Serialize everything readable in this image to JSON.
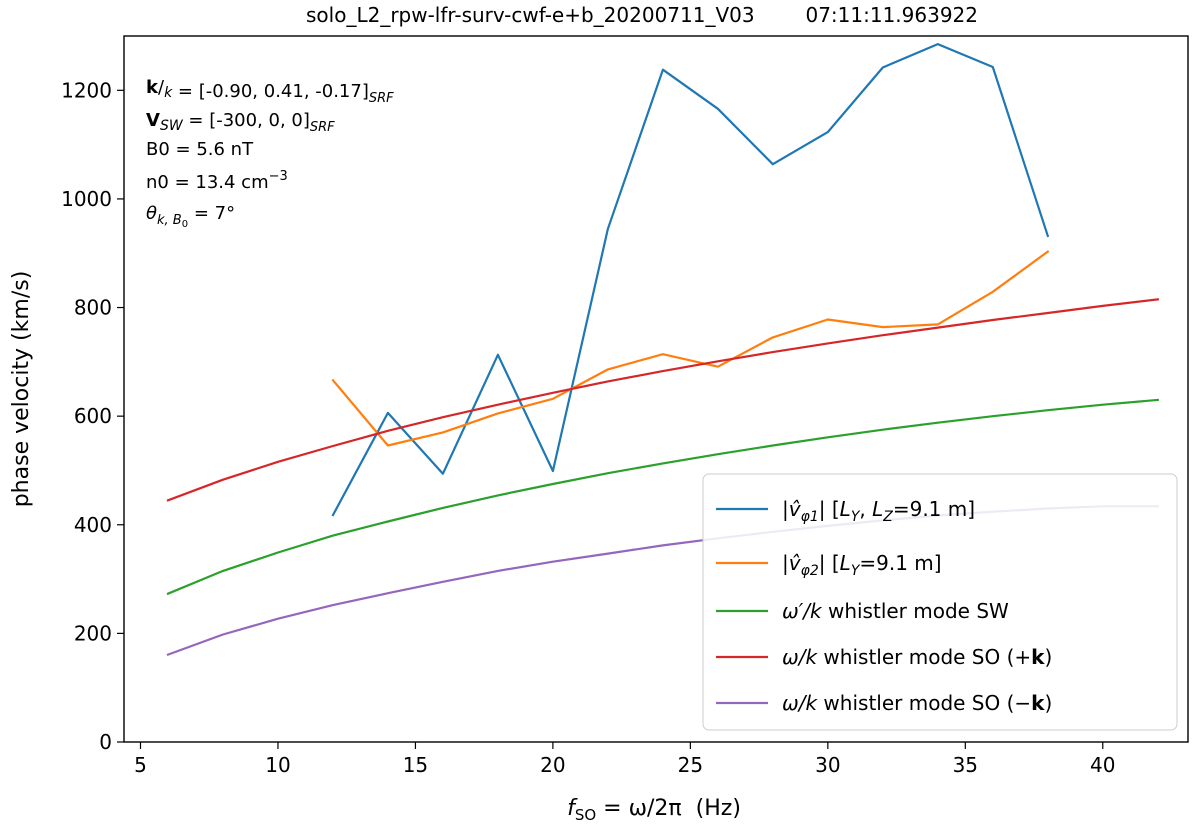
{
  "chart_data": {
    "type": "line",
    "title": "solo_L2_rpw-lfr-surv-cwf-e+b_20200711_V03        07:11:11.963922",
    "xlabel": {
      "main": "f",
      "sub": "SO",
      "rest": " = ω/2π  (Hz)"
    },
    "ylabel": "phase velocity (km/s)",
    "xlim": [
      4.4,
      43.1
    ],
    "ylim": [
      0,
      1300
    ],
    "xticks": [
      5,
      10,
      15,
      20,
      25,
      30,
      35,
      40
    ],
    "yticks": [
      0,
      200,
      400,
      600,
      800,
      1000,
      1200
    ],
    "grid": false,
    "legend_position": "lower-right",
    "annotations": [
      {
        "bold": "k",
        "mid": "/",
        "ital": "k",
        "rest": " = [-0.90, 0.41, -0.17]",
        "sub": "SRF"
      },
      {
        "bold": "V",
        "ital": "SW",
        "rest": " = [-300, 0, 0]",
        "sub": "SRF"
      },
      {
        "text": "B0 = 5.6 nT"
      },
      {
        "text": "n0 = 13.4 cm",
        "sup": "−3"
      },
      {
        "ital": "θ",
        "sub": "k, B",
        "sub2": "0",
        "rest": " = 7°"
      }
    ],
    "series": [
      {
        "name": "|v̂φ1|   [LY, LZ=9.1 m]",
        "legend": {
          "a": "|",
          "v": "v̂",
          "sub": "φ1",
          "b": "|   [",
          "c": "L",
          "csub": "Y",
          "d": ", ",
          "e": "L",
          "esub": "Z",
          "f": "=9.1 m]"
        },
        "color": "#1f77b4",
        "x": [
          12,
          14,
          16,
          18,
          20,
          22,
          24,
          26,
          28,
          30,
          32,
          34,
          36,
          38
        ],
        "y": [
          418,
          606,
          494,
          713,
          499,
          945,
          1238,
          1166,
          1064,
          1123,
          1242,
          1285,
          1243,
          932
        ]
      },
      {
        "name": "|v̂φ2|   [LY=9.1 m]",
        "legend": {
          "a": "|",
          "v": "v̂",
          "sub": "φ2",
          "b": "|   [",
          "c": "L",
          "csub": "Y",
          "f": "=9.1 m]"
        },
        "color": "#ff7f0e",
        "x": [
          12,
          14,
          16,
          18,
          20,
          22,
          24,
          26,
          28,
          30,
          32,
          34,
          36,
          38
        ],
        "y": [
          666,
          546,
          570,
          605,
          632,
          686,
          714,
          691,
          745,
          778,
          764,
          769,
          829,
          903
        ]
      },
      {
        "name": "ω′/k whistler mode SW",
        "legend": {
          "ital": "ω′/k",
          "rest": " whistler mode SW"
        },
        "color": "#2ca02c",
        "x": [
          6,
          8,
          10,
          12,
          14,
          16,
          18,
          20,
          22,
          24,
          26,
          28,
          30,
          32,
          34,
          36,
          38,
          40,
          42
        ],
        "y": [
          273,
          315,
          349,
          380,
          406,
          431,
          454,
          475,
          495,
          513,
          530,
          546,
          561,
          575,
          588,
          600,
          611,
          621,
          630
        ]
      },
      {
        "name": "ω/k whistler mode SO (+k)",
        "legend": {
          "ital": "ω/k",
          "rest": " whistler mode SO (+",
          "bold": "k",
          "end": ")"
        },
        "color": "#d62728",
        "x": [
          6,
          8,
          10,
          12,
          14,
          16,
          18,
          20,
          22,
          24,
          26,
          28,
          30,
          32,
          34,
          36,
          38,
          40,
          42
        ],
        "y": [
          445,
          483,
          516,
          545,
          573,
          598,
          621,
          643,
          664,
          683,
          701,
          718,
          734,
          749,
          763,
          777,
          790,
          803,
          815
        ]
      },
      {
        "name": "ω/k whistler mode SO (−k)",
        "legend": {
          "ital": "ω/k",
          "rest": " whistler mode SO (−",
          "bold": "k",
          "end": ")"
        },
        "color": "#9467bd",
        "x": [
          6,
          8,
          10,
          12,
          14,
          16,
          18,
          20,
          22,
          24,
          26,
          28,
          30,
          32,
          34,
          36,
          38,
          40,
          42
        ],
        "y": [
          161,
          198,
          227,
          252,
          274,
          295,
          315,
          332,
          347,
          362,
          375,
          387,
          398,
          408,
          417,
          424,
          430,
          434,
          434
        ]
      }
    ]
  }
}
